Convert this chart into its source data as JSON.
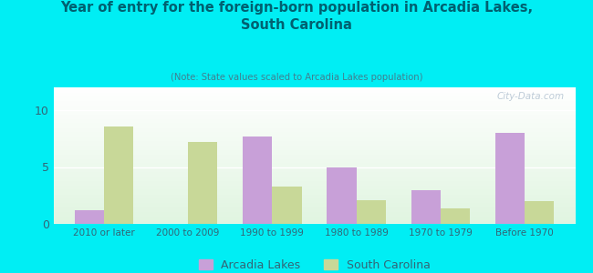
{
  "title": "Year of entry for the foreign-born population in Arcadia Lakes,\nSouth Carolina",
  "subtitle": "(Note: State values scaled to Arcadia Lakes population)",
  "categories": [
    "2010 or later",
    "2000 to 2009",
    "1990 to 1999",
    "1980 to 1989",
    "1970 to 1979",
    "Before 1970"
  ],
  "arcadia_values": [
    1.2,
    0.0,
    7.7,
    5.0,
    3.0,
    8.0
  ],
  "sc_values": [
    8.6,
    7.2,
    3.3,
    2.1,
    1.4,
    2.0
  ],
  "arcadia_color": "#c8a0d8",
  "sc_color": "#c8d898",
  "background_color": "#00eef4",
  "title_color": "#006070",
  "subtitle_color": "#408090",
  "ylabel_ticks": [
    0,
    5,
    10
  ],
  "ylim": [
    0,
    12
  ],
  "bar_width": 0.35,
  "legend_arcadia": "Arcadia Lakes",
  "legend_sc": "South Carolina",
  "watermark": "City-Data.com"
}
